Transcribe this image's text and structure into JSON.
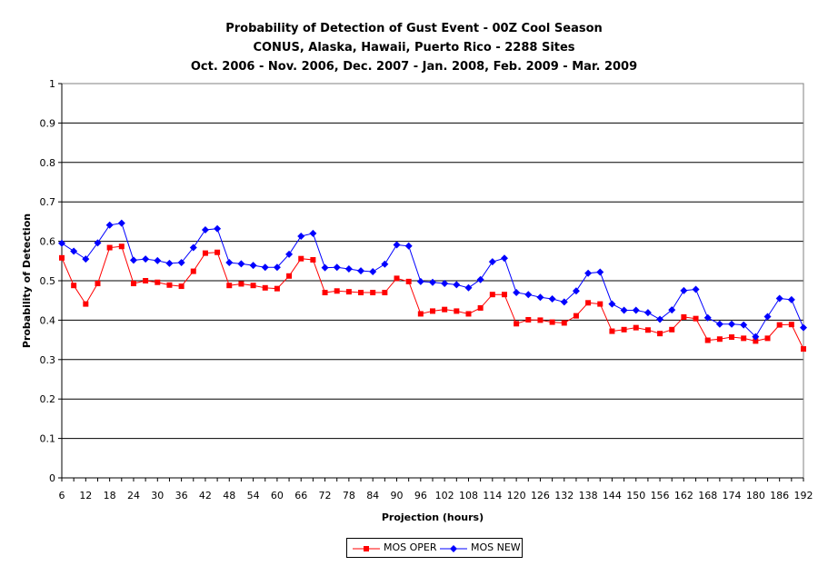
{
  "chart_data": {
    "type": "line",
    "title": "Probability of Detection of Gust Event - 00Z Cool Season",
    "subtitle": [
      "CONUS, Alaska, Hawaii, Puerto Rico - 2288 Sites",
      "Oct. 2006 - Nov. 2006, Dec. 2007 - Jan. 2008, Feb. 2009 - Mar. 2009"
    ],
    "xlabel": "Projection (hours)",
    "ylabel": "Probability of Detection",
    "ylim": [
      0,
      1
    ],
    "yticks": [
      "0",
      "0.1",
      "0.2",
      "0.3",
      "0.4",
      "0.5",
      "0.6",
      "0.7",
      "0.8",
      "0.9",
      "1"
    ],
    "xticks": [
      "6",
      "12",
      "18",
      "24",
      "30",
      "36",
      "42",
      "48",
      "54",
      "60",
      "66",
      "72",
      "78",
      "84",
      "90",
      "96",
      "102",
      "108",
      "114",
      "120",
      "126",
      "132",
      "138",
      "144",
      "150",
      "156",
      "162",
      "168",
      "174",
      "180",
      "186",
      "192"
    ],
    "grid": true,
    "legend_position": "bottom",
    "x": [
      6,
      9,
      12,
      15,
      18,
      21,
      24,
      27,
      30,
      33,
      36,
      39,
      42,
      45,
      48,
      51,
      54,
      57,
      60,
      63,
      66,
      69,
      72,
      75,
      78,
      81,
      84,
      87,
      90,
      93,
      96,
      99,
      102,
      105,
      108,
      111,
      114,
      117,
      120,
      123,
      126,
      129,
      132,
      135,
      138,
      141,
      144,
      147,
      150,
      153,
      156,
      159,
      162,
      165,
      168,
      171,
      174,
      177,
      180,
      183,
      186,
      189,
      192
    ],
    "series": [
      {
        "name": "MOS OPER",
        "color": "#ff0000",
        "marker": "square",
        "values": [
          0.558,
          0.488,
          0.441,
          0.493,
          0.584,
          0.587,
          0.493,
          0.5,
          0.496,
          0.489,
          0.486,
          0.524,
          0.57,
          0.572,
          0.488,
          0.492,
          0.488,
          0.482,
          0.48,
          0.512,
          0.556,
          0.553,
          0.47,
          0.474,
          0.472,
          0.47,
          0.47,
          0.47,
          0.506,
          0.498,
          0.416,
          0.423,
          0.427,
          0.423,
          0.416,
          0.431,
          0.465,
          0.465,
          0.391,
          0.401,
          0.4,
          0.395,
          0.393,
          0.411,
          0.444,
          0.441,
          0.372,
          0.376,
          0.381,
          0.375,
          0.366,
          0.376,
          0.408,
          0.404,
          0.349,
          0.352,
          0.357,
          0.354,
          0.347,
          0.354,
          0.388,
          0.389,
          0.327
        ]
      },
      {
        "name": "MOS NEW",
        "color": "#0000ff",
        "marker": "diamond",
        "values": [
          0.595,
          0.575,
          0.555,
          0.596,
          0.641,
          0.646,
          0.552,
          0.555,
          0.551,
          0.544,
          0.546,
          0.584,
          0.629,
          0.632,
          0.546,
          0.543,
          0.539,
          0.534,
          0.534,
          0.567,
          0.613,
          0.62,
          0.533,
          0.534,
          0.53,
          0.525,
          0.523,
          0.542,
          0.591,
          0.588,
          0.498,
          0.496,
          0.493,
          0.49,
          0.482,
          0.503,
          0.548,
          0.557,
          0.47,
          0.465,
          0.458,
          0.454,
          0.446,
          0.474,
          0.519,
          0.522,
          0.441,
          0.425,
          0.425,
          0.419,
          0.402,
          0.426,
          0.475,
          0.478,
          0.406,
          0.39,
          0.39,
          0.388,
          0.358,
          0.409,
          0.455,
          0.452,
          0.381
        ]
      }
    ]
  }
}
